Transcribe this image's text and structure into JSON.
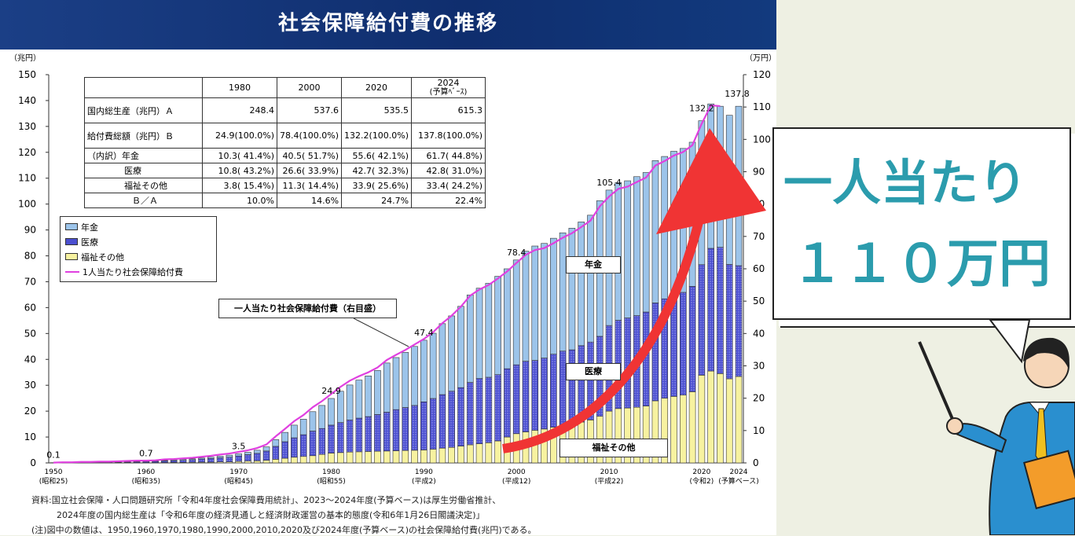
{
  "header": {
    "title": "社会保障給付費の推移"
  },
  "chart_data": {
    "type": "bar",
    "title": "社会保障給付費の推移",
    "ylabel": "（兆円）",
    "y2label": "（万円）",
    "ylim": [
      0,
      150
    ],
    "y2lim": [
      0,
      120
    ],
    "yticks": [
      "0",
      "10",
      "20",
      "30",
      "40",
      "50",
      "60",
      "70",
      "80",
      "90",
      "100",
      "110",
      "120",
      "130",
      "140",
      "150"
    ],
    "y2ticks": [
      "0",
      "10",
      "20",
      "30",
      "40",
      "50",
      "60",
      "70",
      "80",
      "90",
      "100",
      "110",
      "120"
    ],
    "xticks": [
      {
        "year": 1950,
        "label": "1950",
        "sub": "(昭和25)"
      },
      {
        "year": 1960,
        "label": "1960",
        "sub": "(昭和35)"
      },
      {
        "year": 1970,
        "label": "1970",
        "sub": "(昭和45)"
      },
      {
        "year": 1980,
        "label": "1980",
        "sub": "(昭和55)"
      },
      {
        "year": 1990,
        "label": "1990",
        "sub": "(平成2)"
      },
      {
        "year": 2000,
        "label": "2000",
        "sub": "(平成12)"
      },
      {
        "year": 2010,
        "label": "2010",
        "sub": "(平成22)"
      },
      {
        "year": 2020,
        "label": "2020",
        "sub": "(令和2)"
      },
      {
        "year": 2024,
        "label": "2024",
        "sub": "(予算ベース)"
      }
    ],
    "start_year": 1950,
    "total": [
      0.1,
      0.2,
      0.2,
      0.3,
      0.3,
      0.4,
      0.4,
      0.4,
      0.5,
      0.6,
      0.7,
      0.8,
      1.0,
      1.2,
      1.4,
      1.6,
      1.9,
      2.2,
      2.6,
      3.0,
      3.5,
      4.1,
      4.9,
      6.2,
      9.0,
      11.8,
      14.6,
      16.9,
      19.8,
      22.2,
      24.9,
      27.7,
      30.1,
      32.0,
      33.6,
      35.7,
      38.6,
      40.7,
      42.7,
      45.0,
      47.4,
      50.1,
      53.8,
      56.8,
      60.5,
      64.9,
      67.5,
      69.4,
      72.1,
      75.0,
      78.4,
      81.8,
      83.8,
      84.8,
      86.8,
      88.9,
      90.7,
      93.1,
      95.7,
      101.3,
      105.4,
      108.3,
      109.0,
      110.6,
      112.2,
      116.8,
      118.4,
      120.4,
      121.5,
      123.9,
      132.2,
      138.7,
      137.8,
      134.3,
      137.8
    ],
    "series": [
      {
        "name": "年金",
        "color": "#9cc4ea",
        "derived": "total - 医療 - 福祉その他"
      },
      {
        "name": "医療",
        "color": "#4b4fd0",
        "values": [
          0.05,
          0.08,
          0.1,
          0.12,
          0.15,
          0.18,
          0.2,
          0.2,
          0.25,
          0.3,
          0.4,
          0.5,
          0.6,
          0.7,
          0.8,
          1.0,
          1.2,
          1.4,
          1.6,
          1.8,
          2.1,
          2.5,
          2.9,
          3.6,
          5.0,
          6.4,
          7.5,
          8.4,
          9.5,
          10.0,
          10.8,
          11.6,
          12.4,
          13.0,
          13.5,
          14.2,
          15.0,
          15.9,
          16.6,
          17.3,
          18.6,
          19.6,
          20.7,
          21.7,
          22.6,
          24.1,
          25.2,
          25.3,
          25.6,
          26.4,
          26.6,
          27.3,
          27.0,
          27.4,
          28.2,
          28.7,
          28.7,
          29.5,
          30.1,
          30.9,
          33.1,
          34.1,
          34.8,
          35.4,
          36.3,
          37.8,
          38.4,
          39.4,
          39.7,
          40.7,
          42.7,
          47.4,
          48.8,
          44.2,
          42.8
        ]
      },
      {
        "name": "福祉その他",
        "color": "#f7f2a0",
        "values": [
          0.0,
          0.05,
          0.05,
          0.05,
          0.1,
          0.1,
          0.1,
          0.1,
          0.1,
          0.1,
          0.1,
          0.1,
          0.15,
          0.2,
          0.2,
          0.25,
          0.3,
          0.3,
          0.4,
          0.4,
          0.6,
          0.7,
          0.8,
          1.0,
          1.4,
          1.8,
          2.2,
          2.5,
          2.8,
          3.3,
          3.8,
          4.0,
          4.2,
          4.3,
          4.4,
          4.5,
          4.6,
          4.7,
          4.8,
          4.9,
          5.0,
          5.3,
          5.7,
          6.0,
          6.5,
          7.0,
          7.4,
          7.8,
          8.5,
          10.0,
          11.3,
          12.0,
          12.6,
          13.1,
          13.8,
          14.5,
          15.0,
          15.8,
          16.6,
          18.0,
          20.0,
          21.0,
          21.2,
          21.5,
          22.0,
          24.0,
          25.0,
          25.7,
          26.2,
          27.5,
          33.9,
          35.5,
          34.5,
          32.5,
          33.4
        ]
      },
      {
        "name": "1人当たり社会保障給付費",
        "color": "#e040e0",
        "axis": "right",
        "values": [
          0.1,
          0.2,
          0.2,
          0.3,
          0.3,
          0.4,
          0.4,
          0.5,
          0.6,
          0.7,
          0.7,
          0.8,
          1.1,
          1.2,
          1.4,
          1.6,
          1.9,
          2.2,
          2.6,
          2.9,
          3.4,
          3.9,
          4.6,
          5.7,
          8.2,
          10.5,
          12.9,
          14.8,
          17.2,
          19.1,
          21.3,
          23.5,
          25.4,
          26.8,
          28.0,
          29.5,
          31.8,
          33.4,
          34.9,
          36.6,
          38.3,
          40.4,
          43.2,
          45.5,
          48.3,
          51.7,
          53.6,
          55.0,
          57.0,
          59.2,
          61.8,
          64.3,
          65.8,
          66.4,
          67.9,
          69.6,
          71.0,
          72.9,
          74.9,
          79.3,
          82.3,
          84.7,
          85.4,
          86.8,
          88.2,
          91.9,
          93.3,
          95.0,
          96.1,
          98.2,
          104.8,
          110.5,
          110.3
        ]
      }
    ],
    "data_labels": [
      {
        "year": 1950,
        "text": "0.1"
      },
      {
        "year": 1960,
        "text": "0.7"
      },
      {
        "year": 1970,
        "text": "3.5"
      },
      {
        "year": 1980,
        "text": "24.9"
      },
      {
        "year": 1990,
        "text": "47.4"
      },
      {
        "year": 2000,
        "text": "78.4"
      },
      {
        "year": 2010,
        "text": "105.4"
      },
      {
        "year": 2020,
        "text": "132.2"
      },
      {
        "year": 2024,
        "text": "137.8"
      }
    ],
    "annotations": {
      "pension": "年金",
      "medical": "医療",
      "welfare": "福祉その他",
      "callout": "一人当たり社会保障給付費（右目盛）"
    },
    "legend": [
      "年金",
      "医療",
      "福祉その他",
      "1人当たり社会保障給付費"
    ],
    "legend_position": "upper-left"
  },
  "table": {
    "headers": [
      "",
      "1980",
      "2000",
      "2020",
      "2024",
      "(予算ﾍﾞｰｽ)"
    ],
    "rows": [
      [
        "国内総生産（兆円）Ａ",
        "248.4",
        "537.6",
        "535.5",
        "615.3"
      ],
      [
        "給付費総額（兆円）Ｂ",
        "24.9(100.0%)",
        "78.4(100.0%)",
        "132.2(100.0%)",
        "137.8(100.0%)"
      ],
      [
        "（内訳）年金",
        "10.3( 41.4%)",
        "40.5( 51.7%)",
        "55.6( 42.1%)",
        "61.7( 44.8%)"
      ],
      [
        "医療",
        "10.8( 43.2%)",
        "26.6( 33.9%)",
        "42.7( 32.3%)",
        "42.8( 31.0%)"
      ],
      [
        "福祉その他",
        "3.8( 15.4%)",
        "11.3( 14.4%)",
        "33.9( 25.6%)",
        "33.4( 24.2%)"
      ],
      [
        "Ｂ／Ａ",
        "10.0%",
        "14.6%",
        "24.7%",
        "22.4%"
      ]
    ]
  },
  "notes": [
    "資料:国立社会保障・人口問題研究所「令和4年度社会保障費用統計」、2023～2024年度(予算ベース)は厚生労働省推計、",
    "2024年度の国内総生産は「令和6年度の経済見通しと経済財政運営の基本的態度(令和6年1月26日閣議決定)」",
    "(注)図中の数値は、1950,1960,1970,1980,1990,2000,2010,2020及び2024年度(予算ベース)の社会保障給付費(兆円)である。"
  ],
  "bubble": {
    "line1": "一人当たり",
    "line2": "１１０万円"
  }
}
